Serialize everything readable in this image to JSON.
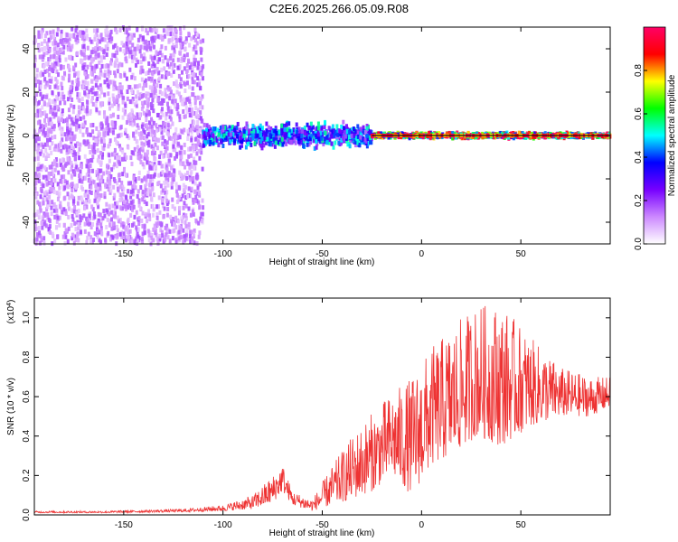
{
  "title": "C2E6.2025.266.05.09.R08",
  "chart_data": [
    {
      "type": "heatmap",
      "xlabel": "Height of straight line (km)",
      "ylabel": "Frequency (Hz)",
      "xlim": [
        -195,
        95
      ],
      "ylim": [
        -50,
        50
      ],
      "xticks": [
        -150,
        -100,
        -50,
        0,
        50
      ],
      "yticks": [
        -40,
        -20,
        0,
        20,
        40
      ],
      "colorbar": {
        "label": "Normalized spectral amplitude",
        "range": [
          0,
          1
        ],
        "ticks": [
          "0.0",
          "0.2",
          "0.4",
          "0.6",
          "0.8"
        ],
        "colors": [
          "#ffffff",
          "#cc88ff",
          "#7700ff",
          "#0000ff",
          "#00ffff",
          "#00ff00",
          "#ffff00",
          "#ff0000",
          "#ff0066"
        ]
      },
      "series": [
        {
          "height_range": [
            -195,
            -110
          ],
          "freq_spread": 50,
          "amplitude": 0.15
        },
        {
          "height_range": [
            -110,
            -25
          ],
          "freq_spread": 5,
          "amplitude": 0.45
        },
        {
          "height_range": [
            -25,
            95
          ],
          "freq_spread": 1.5,
          "amplitude": 0.9
        }
      ]
    },
    {
      "type": "line",
      "xlabel": "Height of straight line (km)",
      "ylabel": "SNR (10 * v/v)",
      "y_multiplier": "(x10",
      "y_multiplier_exp": "4",
      "y_multiplier_close": ")",
      "xlim": [
        -195,
        95
      ],
      "ylim": [
        0,
        1.1
      ],
      "xticks": [
        -150,
        -100,
        -50,
        0,
        50
      ],
      "yticks": [
        "0.0",
        "0.2",
        "0.4",
        "0.6",
        "0.8",
        "1.0"
      ],
      "color": "#ee3333",
      "envelope": [
        {
          "x": -195,
          "base": 0.01,
          "peak": 0.02
        },
        {
          "x": -160,
          "base": 0.01,
          "peak": 0.02
        },
        {
          "x": -120,
          "base": 0.015,
          "peak": 0.03
        },
        {
          "x": -100,
          "base": 0.02,
          "peak": 0.05
        },
        {
          "x": -85,
          "base": 0.03,
          "peak": 0.1
        },
        {
          "x": -75,
          "base": 0.06,
          "peak": 0.2
        },
        {
          "x": -70,
          "base": 0.12,
          "peak": 0.26
        },
        {
          "x": -65,
          "base": 0.05,
          "peak": 0.12
        },
        {
          "x": -55,
          "base": 0.02,
          "peak": 0.08
        },
        {
          "x": -45,
          "base": 0.05,
          "peak": 0.25
        },
        {
          "x": -35,
          "base": 0.08,
          "peak": 0.4
        },
        {
          "x": -25,
          "base": 0.12,
          "peak": 0.52
        },
        {
          "x": -15,
          "base": 0.2,
          "peak": 0.62
        },
        {
          "x": -5,
          "base": 0.1,
          "peak": 0.7
        },
        {
          "x": 5,
          "base": 0.25,
          "peak": 0.85
        },
        {
          "x": 15,
          "base": 0.3,
          "peak": 0.95
        },
        {
          "x": 28,
          "base": 0.4,
          "peak": 1.07
        },
        {
          "x": 40,
          "base": 0.35,
          "peak": 1.07
        },
        {
          "x": 55,
          "base": 0.45,
          "peak": 0.9
        },
        {
          "x": 70,
          "base": 0.5,
          "peak": 0.75
        },
        {
          "x": 85,
          "base": 0.5,
          "peak": 0.7
        },
        {
          "x": 95,
          "base": 0.55,
          "peak": 0.7
        }
      ]
    }
  ]
}
